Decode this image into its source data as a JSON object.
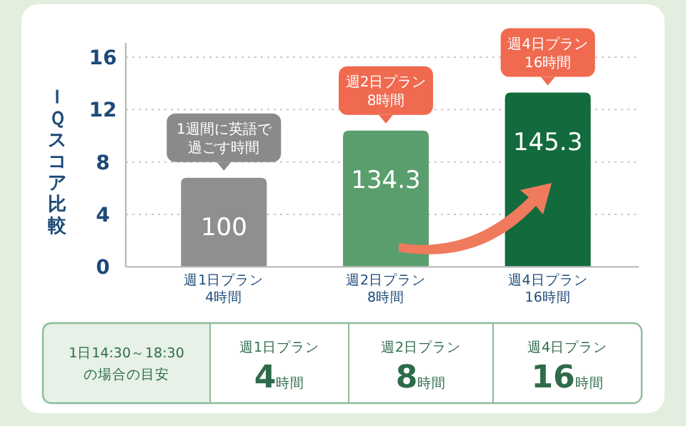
{
  "chart_data": {
    "type": "bar",
    "ylabel": "ＩＱスコア比較",
    "categories": [
      "週1日プラン\n4時間",
      "週2日プラン\n8時間",
      "週4日プラン\n16時間"
    ],
    "values": [
      6.8,
      10.4,
      13.3
    ],
    "colors": [
      "#8f8f8f",
      "#5a9e6e",
      "#136b3d"
    ],
    "ylim": [
      0,
      16
    ],
    "yticks": [
      0,
      4,
      8,
      12,
      16
    ],
    "grid": "y",
    "annotations": [
      {
        "text": "100",
        "x": "週1日プラン\n4時間",
        "y": 6.8
      },
      {
        "text": "134.3",
        "x": "週2日プラン\n8時間",
        "y": 10.4
      },
      {
        "text": "145.3",
        "x": "週4日プラン\n16時間",
        "y": 13.3
      },
      {
        "text": "1週間に英語で過ごす時間",
        "x": "週1日プラン\n4時間",
        "y": 6.8
      },
      {
        "text": "週2日プラン\n8時間",
        "x": "週2日プラン\n8時間",
        "y": 10.4
      },
      {
        "text": "週4日プラン\n16時間",
        "x": "週4日プラン\n16時間",
        "y": 13.3
      },
      "1日14:30～18:30の場合の目安",
      "週1日プラン\n**4**時間",
      "週2日プラン\n**8**時間",
      "週4日プラン\n**16**時間"
    ]
  }
}
